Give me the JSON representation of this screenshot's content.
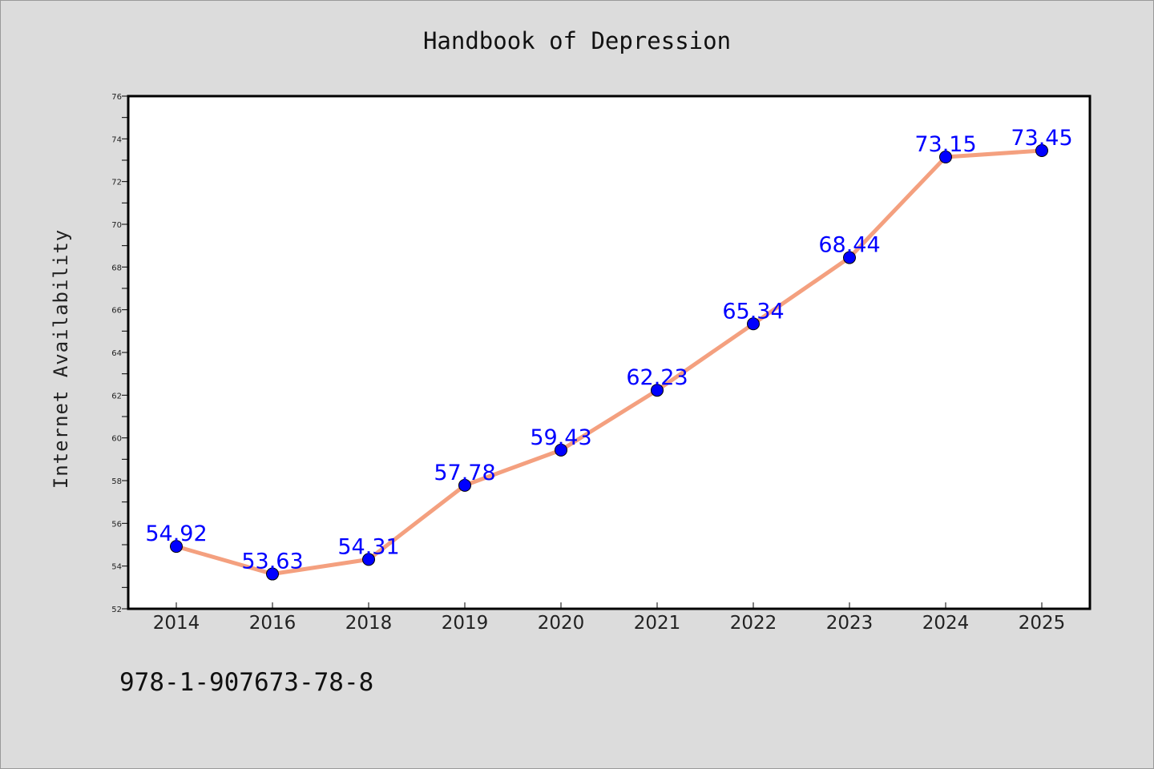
{
  "title": "Handbook of Depression",
  "isbn": "978-1-907673-78-8",
  "colors": {
    "background": "#dcdcdc",
    "plot_background": "#ffffff",
    "line": "#f4a07f",
    "marker": "#0000ff",
    "data_label": "#0000ff",
    "axis": "#000000"
  },
  "chart_data": {
    "type": "line",
    "title": "Handbook of Depression",
    "xlabel": "",
    "ylabel": "Internet Availability",
    "categories": [
      "2014",
      "2016",
      "2018",
      "2019",
      "2020",
      "2021",
      "2022",
      "2023",
      "2024",
      "2025"
    ],
    "series": [
      {
        "values": [
          54.92,
          53.63,
          54.31,
          57.78,
          59.43,
          62.23,
          65.34,
          68.44,
          73.15,
          73.45
        ],
        "labels": [
          "54.92",
          "53.63",
          "54.31",
          "57.78",
          "59.43",
          "62.23",
          "65.34",
          "68.44",
          "73.15",
          "73.45"
        ]
      }
    ],
    "ylim": [
      52,
      76
    ],
    "yticks": [
      "52",
      "54",
      "56",
      "58",
      "60",
      "62",
      "64",
      "66",
      "68",
      "70",
      "72",
      "74",
      "76"
    ],
    "grid": false,
    "legend": "none"
  }
}
